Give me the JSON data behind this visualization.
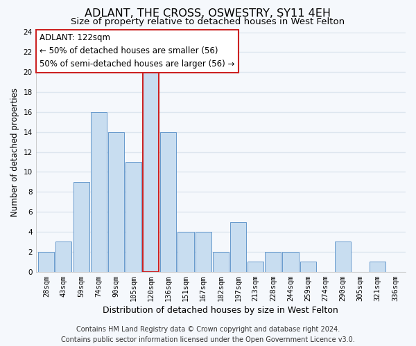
{
  "title": "ADLANT, THE CROSS, OSWESTRY, SY11 4EH",
  "subtitle": "Size of property relative to detached houses in West Felton",
  "xlabel": "Distribution of detached houses by size in West Felton",
  "ylabel": "Number of detached properties",
  "bar_labels": [
    "28sqm",
    "43sqm",
    "59sqm",
    "74sqm",
    "90sqm",
    "105sqm",
    "120sqm",
    "136sqm",
    "151sqm",
    "167sqm",
    "182sqm",
    "197sqm",
    "213sqm",
    "228sqm",
    "244sqm",
    "259sqm",
    "274sqm",
    "290sqm",
    "305sqm",
    "321sqm",
    "336sqm"
  ],
  "bar_values": [
    2,
    3,
    9,
    16,
    14,
    11,
    20,
    14,
    4,
    4,
    2,
    5,
    1,
    2,
    2,
    1,
    0,
    3,
    0,
    1,
    0
  ],
  "bar_color": "#c8ddf0",
  "bar_edge_color": "#6699cc",
  "highlight_bar_index": 6,
  "highlight_bar_edge_color": "#cc2222",
  "ylim": [
    0,
    24
  ],
  "yticks": [
    0,
    2,
    4,
    6,
    8,
    10,
    12,
    14,
    16,
    18,
    20,
    22,
    24
  ],
  "annotation_title": "ADLANT: 122sqm",
  "annotation_line1": "← 50% of detached houses are smaller (56)",
  "annotation_line2": "50% of semi-detached houses are larger (56) →",
  "annotation_box_facecolor": "#ffffff",
  "annotation_box_edgecolor": "#cc2222",
  "footer_line1": "Contains HM Land Registry data © Crown copyright and database right 2024.",
  "footer_line2": "Contains public sector information licensed under the Open Government Licence v3.0.",
  "background_color": "#f5f8fc",
  "plot_background_color": "#f5f8fc",
  "grid_color": "#dde6ef",
  "title_fontsize": 11.5,
  "subtitle_fontsize": 9.5,
  "xlabel_fontsize": 9,
  "ylabel_fontsize": 8.5,
  "tick_fontsize": 7.5,
  "annotation_fontsize": 8.5,
  "footer_fontsize": 7
}
